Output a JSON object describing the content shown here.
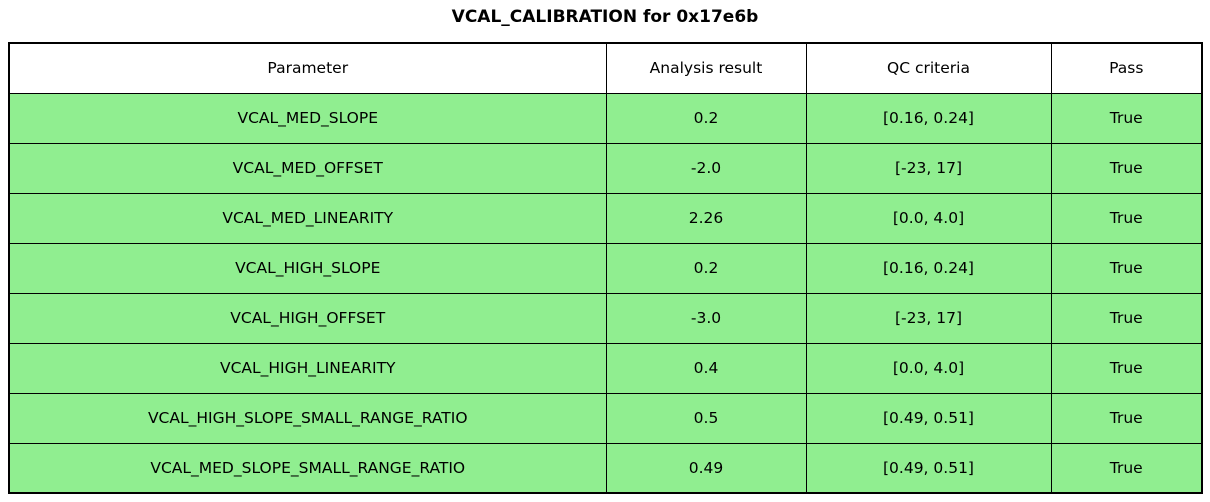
{
  "page": {
    "title": "VCAL_CALIBRATION for 0x17e6b"
  },
  "colors": {
    "pass_row_bg": "#90EE90",
    "header_bg": "#FFFFFF",
    "border": "#000000",
    "text": "#000000"
  },
  "chart_data": {
    "type": "table",
    "title": "VCAL_CALIBRATION for 0x17e6b",
    "columns": [
      "Parameter",
      "Analysis result",
      "QC criteria",
      "Pass"
    ],
    "rows": [
      [
        "VCAL_MED_SLOPE",
        "0.2",
        "[0.16, 0.24]",
        "True"
      ],
      [
        "VCAL_MED_OFFSET",
        "-2.0",
        "[-23, 17]",
        "True"
      ],
      [
        "VCAL_MED_LINEARITY",
        "2.26",
        "[0.0, 4.0]",
        "True"
      ],
      [
        "VCAL_HIGH_SLOPE",
        "0.2",
        "[0.16, 0.24]",
        "True"
      ],
      [
        "VCAL_HIGH_OFFSET",
        "-3.0",
        "[-23, 17]",
        "True"
      ],
      [
        "VCAL_HIGH_LINEARITY",
        "0.4",
        "[0.0, 4.0]",
        "True"
      ],
      [
        "VCAL_HIGH_SLOPE_SMALL_RANGE_RATIO",
        "0.5",
        "[0.49, 0.51]",
        "True"
      ],
      [
        "VCAL_MED_SLOPE_SMALL_RANGE_RATIO",
        "0.49",
        "[0.49, 0.51]",
        "True"
      ]
    ],
    "all_rows_pass": true,
    "legend_position": "none",
    "grid": "table-borders"
  }
}
